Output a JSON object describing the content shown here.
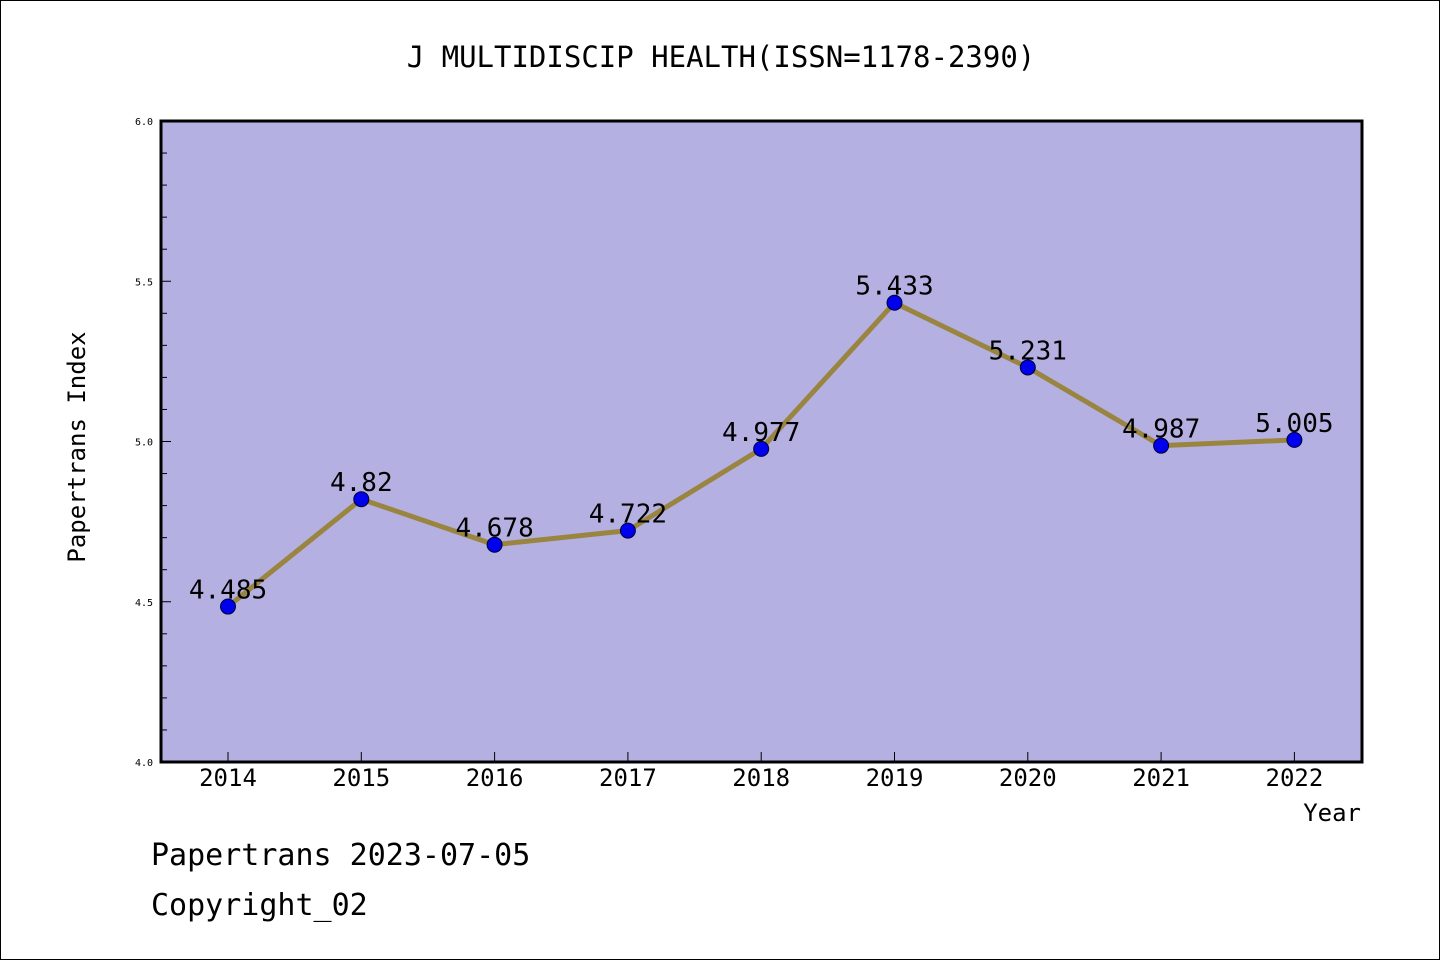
{
  "chart_data": {
    "type": "line",
    "title": "J MULTIDISCIP HEALTH(ISSN=1178-2390)",
    "xlabel": "Year",
    "ylabel": "Papertrans Index",
    "x": [
      "2014",
      "2015",
      "2016",
      "2017",
      "2018",
      "2019",
      "2020",
      "2021",
      "2022"
    ],
    "values": [
      4.485,
      4.82,
      4.678,
      4.722,
      4.977,
      5.433,
      5.231,
      4.987,
      5.005
    ],
    "data_labels": [
      "4.485",
      "4.82",
      "4.678",
      "4.722",
      "4.977",
      "5.433",
      "5.231",
      "4.987",
      "5.005"
    ],
    "ylim": [
      4.0,
      6.0
    ],
    "yticks": [
      "4.0",
      "4.5",
      "5.0",
      "5.5",
      "6.0"
    ],
    "grid": false,
    "legend": "none",
    "colors": {
      "plot_background": "#b5b0e2",
      "line": "#9a8540",
      "marker": "#0000ee"
    }
  },
  "footer": {
    "line1": "Papertrans 2023-07-05",
    "line2": "Copyright_02"
  }
}
